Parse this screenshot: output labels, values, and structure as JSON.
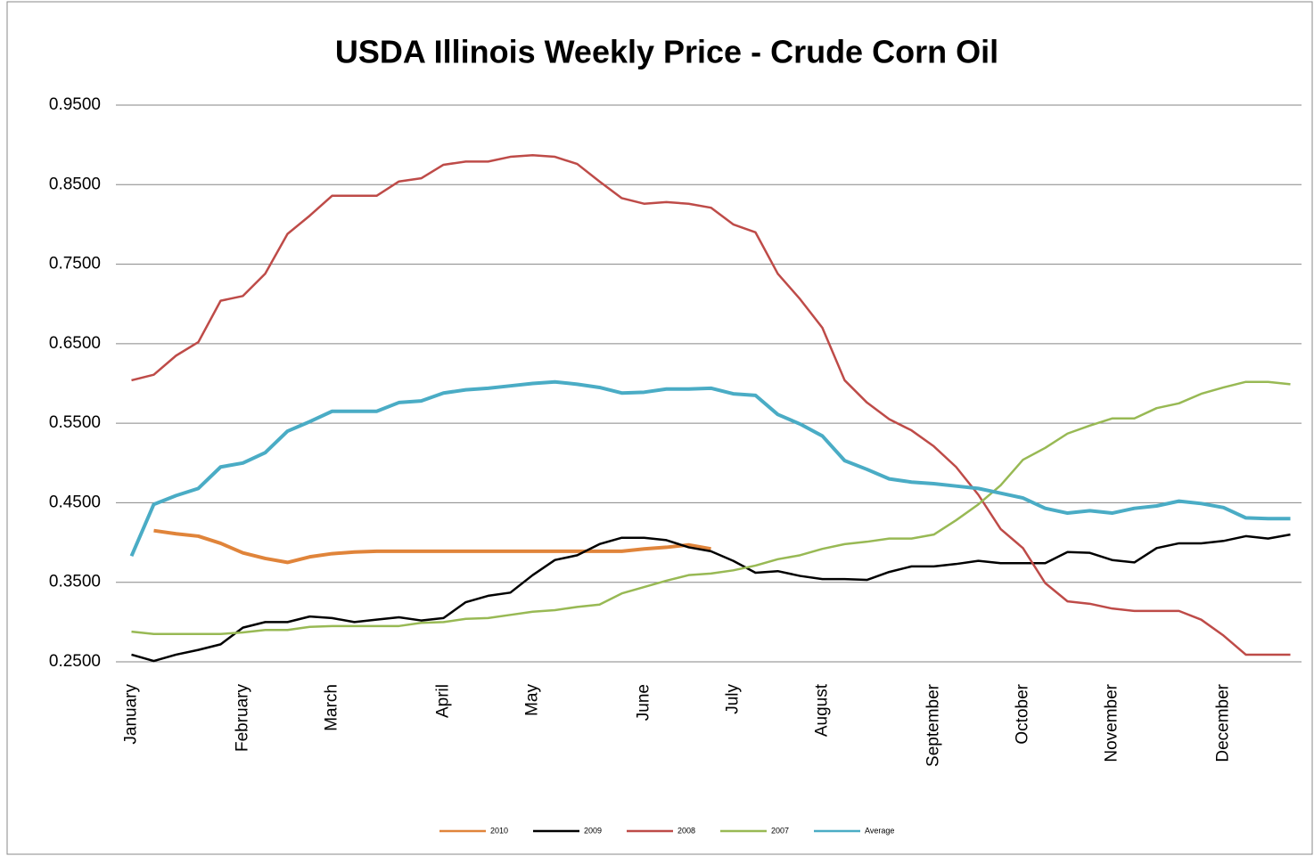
{
  "chart_data": {
    "type": "line",
    "title": "USDA Illinois Weekly Price - Crude Corn Oil",
    "categories": [
      "January",
      null,
      null,
      null,
      null,
      "February",
      null,
      null,
      null,
      "March",
      null,
      null,
      null,
      null,
      "April",
      null,
      null,
      null,
      "May",
      null,
      null,
      null,
      null,
      "June",
      null,
      null,
      null,
      "July",
      null,
      null,
      null,
      "August",
      null,
      null,
      null,
      null,
      "September",
      null,
      null,
      null,
      "October",
      null,
      null,
      null,
      "November",
      null,
      null,
      null,
      null,
      "December",
      null,
      null,
      null
    ],
    "series": [
      {
        "name": "2010",
        "color": "#e0843a",
        "width": 4,
        "values": [
          null,
          0.415,
          0.411,
          0.408,
          0.399,
          0.387,
          0.38,
          0.375,
          0.382,
          0.386,
          0.388,
          0.389,
          0.389,
          0.389,
          0.389,
          0.389,
          0.389,
          0.389,
          0.389,
          0.389,
          0.389,
          0.389,
          0.389,
          0.392,
          0.394,
          0.397,
          0.392,
          null,
          null,
          null,
          null,
          null,
          null,
          null,
          null,
          null,
          null,
          null,
          null,
          null,
          null,
          null,
          null,
          null,
          null,
          null,
          null,
          null,
          null,
          null,
          null,
          null,
          null
        ]
      },
      {
        "name": "2009",
        "color": "#000000",
        "width": 2.5,
        "values": [
          0.259,
          0.251,
          0.259,
          0.265,
          0.272,
          0.293,
          0.3,
          0.3,
          0.307,
          0.305,
          0.3,
          0.303,
          0.306,
          0.302,
          0.305,
          0.325,
          0.333,
          0.337,
          0.359,
          0.378,
          0.384,
          0.398,
          0.406,
          0.406,
          0.403,
          0.394,
          0.389,
          0.377,
          0.362,
          0.364,
          0.358,
          0.354,
          0.354,
          0.353,
          0.363,
          0.37,
          0.37,
          0.373,
          0.377,
          0.374,
          0.374,
          0.374,
          0.388,
          0.387,
          0.378,
          0.375,
          0.393,
          0.399,
          0.399,
          0.402,
          0.408,
          0.405,
          0.41
        ]
      },
      {
        "name": "2008",
        "color": "#be4b48",
        "width": 2.5,
        "values": [
          0.604,
          0.611,
          0.635,
          0.652,
          0.704,
          0.71,
          0.738,
          0.788,
          0.811,
          0.836,
          0.836,
          0.836,
          0.854,
          0.858,
          0.875,
          0.879,
          0.879,
          0.885,
          0.887,
          0.885,
          0.876,
          0.854,
          0.833,
          0.826,
          0.828,
          0.826,
          0.821,
          0.8,
          0.79,
          0.738,
          0.706,
          0.67,
          0.604,
          0.576,
          0.555,
          0.541,
          0.521,
          0.495,
          0.46,
          0.417,
          0.393,
          0.349,
          0.326,
          0.323,
          0.317,
          0.314,
          0.314,
          0.314,
          0.303,
          0.283,
          0.259,
          0.259,
          0.259
        ]
      },
      {
        "name": "2007",
        "color": "#98b954",
        "width": 2.5,
        "values": [
          0.288,
          0.285,
          0.285,
          0.285,
          0.285,
          0.287,
          0.29,
          0.29,
          0.294,
          0.295,
          0.295,
          0.295,
          0.295,
          0.299,
          0.3,
          0.304,
          0.305,
          0.309,
          0.313,
          0.315,
          0.319,
          0.322,
          0.336,
          0.344,
          0.352,
          0.359,
          0.361,
          0.365,
          0.371,
          0.379,
          0.384,
          0.392,
          0.398,
          0.401,
          0.405,
          0.405,
          0.41,
          0.428,
          0.448,
          0.472,
          0.504,
          0.519,
          0.537,
          0.547,
          0.556,
          0.556,
          0.569,
          0.575,
          0.587,
          0.595,
          0.602,
          0.602,
          0.599
        ]
      },
      {
        "name": "Average",
        "color": "#4aacc5",
        "width": 4,
        "values": [
          0.383,
          0.448,
          0.459,
          0.468,
          0.495,
          0.5,
          0.513,
          0.54,
          0.552,
          0.565,
          0.565,
          0.565,
          0.576,
          0.578,
          0.588,
          0.592,
          0.594,
          0.597,
          0.6,
          0.602,
          0.599,
          0.595,
          0.588,
          0.589,
          0.593,
          0.593,
          0.594,
          0.587,
          0.585,
          0.561,
          0.549,
          0.534,
          0.503,
          0.492,
          0.48,
          0.476,
          0.474,
          0.471,
          0.468,
          0.462,
          0.456,
          0.443,
          0.437,
          0.44,
          0.437,
          0.443,
          0.446,
          0.452,
          0.449,
          0.444,
          0.431,
          0.43,
          0.43
        ]
      }
    ],
    "ylim": [
      0.25,
      0.95
    ],
    "yticks": [
      {
        "value": 0.25,
        "label": "0.2500"
      },
      {
        "value": 0.35,
        "label": "0.3500"
      },
      {
        "value": 0.45,
        "label": "0.4500"
      },
      {
        "value": 0.55,
        "label": "0.5500"
      },
      {
        "value": 0.65,
        "label": "0.6500"
      },
      {
        "value": 0.75,
        "label": "0.7500"
      },
      {
        "value": 0.85,
        "label": "0.8500"
      },
      {
        "value": 0.95,
        "label": "0.9500"
      }
    ],
    "grid": true,
    "legend": "bottom"
  }
}
